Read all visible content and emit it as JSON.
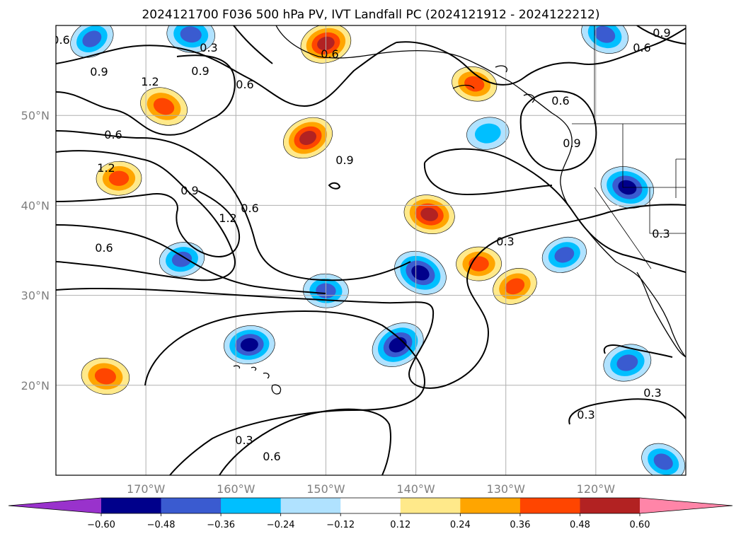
{
  "title": "2024121700 F036 500 hPa PV, IVT Landfall PC (2024121912 - 2024122212)",
  "map": {
    "lon_range": [
      -180,
      -110
    ],
    "lat_range": [
      10,
      60
    ],
    "lat_ticks": [
      {
        "lat": 50,
        "label": "50°N"
      },
      {
        "lat": 40,
        "label": "40°N"
      },
      {
        "lat": 30,
        "label": "30°N"
      },
      {
        "lat": 20,
        "label": "20°N"
      }
    ],
    "lon_ticks": [
      {
        "lon": -170,
        "label": "170°W"
      },
      {
        "lon": -160,
        "label": "160°W"
      },
      {
        "lon": -150,
        "label": "150°W"
      },
      {
        "lon": -140,
        "label": "140°W"
      },
      {
        "lon": -130,
        "label": "130°W"
      },
      {
        "lon": -120,
        "label": "120°W"
      }
    ],
    "grid": true
  },
  "colorbar": {
    "levels": [
      -0.6,
      -0.48,
      -0.36,
      -0.24,
      -0.12,
      0.12,
      0.24,
      0.36,
      0.48,
      0.6
    ],
    "tick_labels": [
      "−0.60",
      "−0.48",
      "−0.36",
      "−0.24",
      "−0.12",
      "0.12",
      "0.24",
      "0.36",
      "0.48",
      "0.60"
    ],
    "colors": [
      "#9932cc",
      "#00008b",
      "#3a5bd0",
      "#00bfff",
      "#b0e2ff",
      "#ffffff",
      "#ffe98a",
      "#ffa500",
      "#ff4500",
      "#b22222",
      "#ff85a8"
    ],
    "extend": "both"
  },
  "contour_labels": [
    "0.3",
    "0.6",
    "0.9",
    "1.2"
  ],
  "chart_data": {
    "type": "heatmap",
    "title": "2024121700 F036 500 hPa PV, IVT Landfall PC (2024121912 - 2024122212)",
    "fill_variable": "IVT Landfall PC",
    "contour_variable": "500 hPa PV",
    "contour_levels": [
      0.3,
      0.6,
      0.9,
      1.2
    ],
    "color_levels": [
      -0.6,
      -0.48,
      -0.36,
      -0.24,
      -0.12,
      0.12,
      0.24,
      0.36,
      0.48,
      0.6
    ],
    "lon_range": [
      -180,
      -110
    ],
    "lat_range": [
      10,
      60
    ],
    "blobs": [
      {
        "lon": -176,
        "lat": 58.5,
        "value": -0.4
      },
      {
        "lon": -165,
        "lat": 59,
        "value": -0.45
      },
      {
        "lon": -150,
        "lat": 58,
        "value": 0.5
      },
      {
        "lon": -168,
        "lat": 51,
        "value": 0.45
      },
      {
        "lon": -173,
        "lat": 43,
        "value": 0.4
      },
      {
        "lon": -152,
        "lat": 47.5,
        "value": 0.5
      },
      {
        "lon": -138.5,
        "lat": 39,
        "value": 0.5
      },
      {
        "lon": -166,
        "lat": 34,
        "value": -0.4
      },
      {
        "lon": -139.5,
        "lat": 32.5,
        "value": -0.55
      },
      {
        "lon": -150,
        "lat": 30.5,
        "value": -0.4
      },
      {
        "lon": -123.5,
        "lat": 34.5,
        "value": -0.4
      },
      {
        "lon": -116.5,
        "lat": 42,
        "value": -0.55
      },
      {
        "lon": -158.5,
        "lat": 24.5,
        "value": -0.5
      },
      {
        "lon": -142,
        "lat": 24.5,
        "value": -0.55
      },
      {
        "lon": -174.5,
        "lat": 21,
        "value": 0.45
      },
      {
        "lon": -116.5,
        "lat": 22.5,
        "value": -0.45
      },
      {
        "lon": -119,
        "lat": 59,
        "value": -0.45
      },
      {
        "lon": -133,
        "lat": 33.5,
        "value": 0.4
      },
      {
        "lon": -129,
        "lat": 31,
        "value": 0.4
      },
      {
        "lon": -133.5,
        "lat": 53.5,
        "value": 0.4
      },
      {
        "lon": -132,
        "lat": 48,
        "value": -0.35
      },
      {
        "lon": -112.5,
        "lat": 11.5,
        "value": -0.4
      }
    ]
  }
}
